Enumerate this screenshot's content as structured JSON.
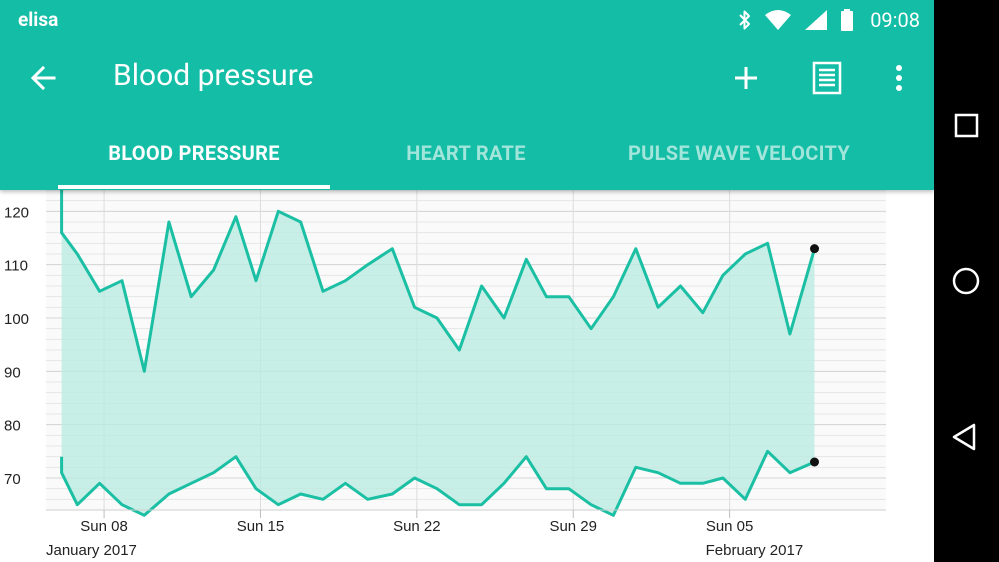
{
  "status_bar": {
    "carrier": "elisa",
    "time": "09:08",
    "icons": [
      "bluetooth-icon",
      "wifi-icon",
      "signal-icon",
      "battery-icon"
    ]
  },
  "toolbar": {
    "title": "Blood pressure",
    "back_icon": "arrow-back-icon",
    "actions": [
      "add-icon",
      "list-icon",
      "more-vertical-icon"
    ]
  },
  "tabs": [
    {
      "label": "BLOOD PRESSURE",
      "active": true
    },
    {
      "label": "HEART RATE",
      "active": false
    },
    {
      "label": "PULSE WAVE VELOCITY",
      "active": false
    }
  ],
  "nav_bar": {
    "buttons": [
      "recents-square-icon",
      "home-circle-icon",
      "back-triangle-icon"
    ]
  },
  "colors": {
    "primary": "#14bda5",
    "line": "#1bbfa3",
    "fill": "#b7ebe0",
    "grid": "#e6e6e6"
  },
  "chart_data": {
    "type": "area",
    "y_ticks": [
      70,
      80,
      90,
      100,
      110,
      120
    ],
    "ylim": [
      64,
      124
    ],
    "xlim": [
      5.4,
      43.0
    ],
    "x_ticks": [
      {
        "x": 8,
        "label": "Sun 08"
      },
      {
        "x": 15,
        "label": "Sun 15"
      },
      {
        "x": 22,
        "label": "Sun 22"
      },
      {
        "x": 29,
        "label": "Sun 29"
      },
      {
        "x": 36,
        "label": "Sun 05"
      }
    ],
    "month_labels": [
      {
        "x": 5.4,
        "label": "January 2017"
      },
      {
        "x": 36,
        "label": "February 2017"
      }
    ],
    "grid": true,
    "series": [
      {
        "name": "systolic",
        "points": [
          [
            6.1,
            127
          ],
          [
            6.1,
            116
          ],
          [
            6.8,
            112
          ],
          [
            7.8,
            105
          ],
          [
            8.8,
            107
          ],
          [
            9.8,
            90
          ],
          [
            10.9,
            118
          ],
          [
            11.9,
            104
          ],
          [
            12.9,
            109
          ],
          [
            13.9,
            119
          ],
          [
            14.8,
            107
          ],
          [
            15.8,
            120
          ],
          [
            16.8,
            118
          ],
          [
            17.8,
            105
          ],
          [
            18.8,
            107
          ],
          [
            19.8,
            110
          ],
          [
            20.9,
            113
          ],
          [
            21.9,
            102
          ],
          [
            22.9,
            100
          ],
          [
            23.9,
            94
          ],
          [
            24.9,
            106
          ],
          [
            25.9,
            100
          ],
          [
            26.9,
            111
          ],
          [
            27.8,
            104
          ],
          [
            28.8,
            104
          ],
          [
            29.8,
            98
          ],
          [
            30.8,
            104
          ],
          [
            31.8,
            113
          ],
          [
            32.8,
            102
          ],
          [
            33.8,
            106
          ],
          [
            34.8,
            101
          ],
          [
            35.7,
            108
          ],
          [
            36.7,
            112
          ],
          [
            37.7,
            114
          ],
          [
            38.7,
            97
          ],
          [
            39.8,
            113
          ]
        ]
      },
      {
        "name": "diastolic",
        "points": [
          [
            6.1,
            74
          ],
          [
            6.1,
            71
          ],
          [
            6.8,
            65
          ],
          [
            7.8,
            69
          ],
          [
            8.8,
            65
          ],
          [
            9.8,
            63
          ],
          [
            10.9,
            67
          ],
          [
            11.9,
            69
          ],
          [
            12.9,
            71
          ],
          [
            13.9,
            74
          ],
          [
            14.8,
            68
          ],
          [
            15.8,
            65
          ],
          [
            16.8,
            67
          ],
          [
            17.8,
            66
          ],
          [
            18.8,
            69
          ],
          [
            19.8,
            66
          ],
          [
            20.9,
            67
          ],
          [
            21.9,
            70
          ],
          [
            22.9,
            68
          ],
          [
            23.9,
            65
          ],
          [
            24.9,
            65
          ],
          [
            25.9,
            69
          ],
          [
            26.9,
            74
          ],
          [
            27.8,
            68
          ],
          [
            28.8,
            68
          ],
          [
            29.8,
            65
          ],
          [
            30.8,
            63
          ],
          [
            31.8,
            72
          ],
          [
            32.8,
            71
          ],
          [
            33.8,
            69
          ],
          [
            34.8,
            69
          ],
          [
            35.7,
            70
          ],
          [
            36.7,
            66
          ],
          [
            37.7,
            75
          ],
          [
            38.7,
            71
          ],
          [
            39.8,
            73
          ]
        ]
      }
    ]
  }
}
